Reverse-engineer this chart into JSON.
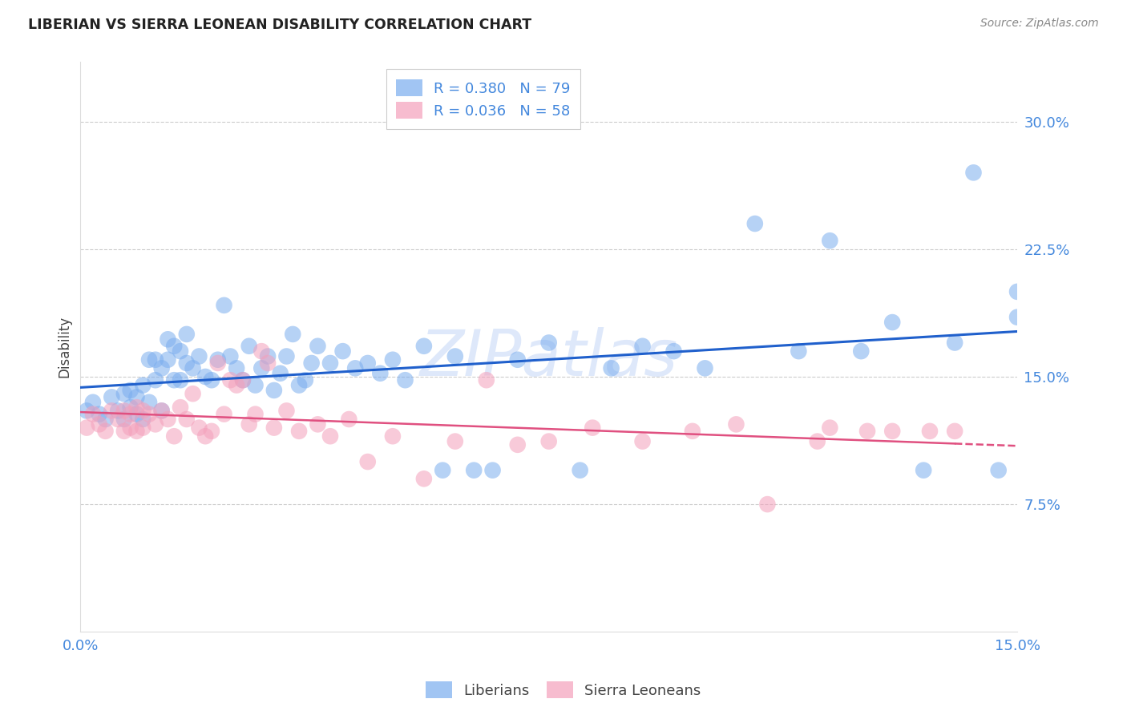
{
  "title": "LIBERIAN VS SIERRA LEONEAN DISABILITY CORRELATION CHART",
  "source": "Source: ZipAtlas.com",
  "ylabel": "Disability",
  "xlim": [
    0.0,
    0.15
  ],
  "ylim": [
    0.0,
    0.335
  ],
  "ytick_values": [
    0.075,
    0.15,
    0.225,
    0.3
  ],
  "ytick_labels": [
    "7.5%",
    "15.0%",
    "22.5%",
    "30.0%"
  ],
  "liberian_color": "#7aadee",
  "sierraleonean_color": "#f4a0bb",
  "trendline_liberian_color": "#2060cc",
  "trendline_sierraleonean_color": "#e05080",
  "background_color": "#ffffff",
  "grid_color": "#cccccc",
  "tick_color": "#4488dd",
  "watermark_color": "#d0dff8",
  "legend_entries": [
    {
      "label": "R = 0.380   N = 79",
      "color": "#7aadee"
    },
    {
      "label": "R = 0.036   N = 58",
      "color": "#f4a0bb"
    }
  ],
  "liberian_x": [
    0.001,
    0.002,
    0.003,
    0.004,
    0.005,
    0.006,
    0.007,
    0.007,
    0.008,
    0.008,
    0.009,
    0.009,
    0.01,
    0.01,
    0.011,
    0.011,
    0.012,
    0.012,
    0.013,
    0.013,
    0.014,
    0.014,
    0.015,
    0.015,
    0.016,
    0.016,
    0.017,
    0.017,
    0.018,
    0.019,
    0.02,
    0.021,
    0.022,
    0.023,
    0.024,
    0.025,
    0.026,
    0.027,
    0.028,
    0.029,
    0.03,
    0.031,
    0.032,
    0.033,
    0.034,
    0.035,
    0.036,
    0.037,
    0.038,
    0.04,
    0.042,
    0.044,
    0.046,
    0.048,
    0.05,
    0.052,
    0.055,
    0.058,
    0.06,
    0.063,
    0.066,
    0.07,
    0.075,
    0.08,
    0.085,
    0.09,
    0.095,
    0.1,
    0.108,
    0.115,
    0.12,
    0.125,
    0.13,
    0.135,
    0.14,
    0.143,
    0.147,
    0.15,
    0.15
  ],
  "liberian_y": [
    0.13,
    0.135,
    0.128,
    0.125,
    0.138,
    0.13,
    0.14,
    0.125,
    0.132,
    0.142,
    0.128,
    0.138,
    0.125,
    0.145,
    0.135,
    0.16,
    0.148,
    0.16,
    0.13,
    0.155,
    0.16,
    0.172,
    0.148,
    0.168,
    0.148,
    0.165,
    0.158,
    0.175,
    0.155,
    0.162,
    0.15,
    0.148,
    0.16,
    0.192,
    0.162,
    0.155,
    0.148,
    0.168,
    0.145,
    0.155,
    0.162,
    0.142,
    0.152,
    0.162,
    0.175,
    0.145,
    0.148,
    0.158,
    0.168,
    0.158,
    0.165,
    0.155,
    0.158,
    0.152,
    0.16,
    0.148,
    0.168,
    0.095,
    0.162,
    0.095,
    0.095,
    0.16,
    0.17,
    0.095,
    0.155,
    0.168,
    0.165,
    0.155,
    0.24,
    0.165,
    0.23,
    0.165,
    0.182,
    0.095,
    0.17,
    0.27,
    0.095,
    0.185,
    0.2
  ],
  "sierraleonean_x": [
    0.001,
    0.002,
    0.003,
    0.004,
    0.005,
    0.006,
    0.007,
    0.007,
    0.008,
    0.008,
    0.009,
    0.009,
    0.01,
    0.01,
    0.011,
    0.012,
    0.013,
    0.014,
    0.015,
    0.016,
    0.017,
    0.018,
    0.019,
    0.02,
    0.021,
    0.022,
    0.023,
    0.024,
    0.025,
    0.026,
    0.027,
    0.028,
    0.029,
    0.03,
    0.031,
    0.033,
    0.035,
    0.038,
    0.04,
    0.043,
    0.046,
    0.05,
    0.055,
    0.06,
    0.065,
    0.07,
    0.075,
    0.082,
    0.09,
    0.098,
    0.105,
    0.11,
    0.118,
    0.12,
    0.126,
    0.13,
    0.136,
    0.14
  ],
  "sierraleonean_y": [
    0.12,
    0.128,
    0.122,
    0.118,
    0.13,
    0.125,
    0.13,
    0.118,
    0.128,
    0.12,
    0.132,
    0.118,
    0.13,
    0.12,
    0.128,
    0.122,
    0.13,
    0.125,
    0.115,
    0.132,
    0.125,
    0.14,
    0.12,
    0.115,
    0.118,
    0.158,
    0.128,
    0.148,
    0.145,
    0.148,
    0.122,
    0.128,
    0.165,
    0.158,
    0.12,
    0.13,
    0.118,
    0.122,
    0.115,
    0.125,
    0.1,
    0.115,
    0.09,
    0.112,
    0.148,
    0.11,
    0.112,
    0.12,
    0.112,
    0.118,
    0.122,
    0.075,
    0.112,
    0.12,
    0.118,
    0.118,
    0.118,
    0.118
  ]
}
